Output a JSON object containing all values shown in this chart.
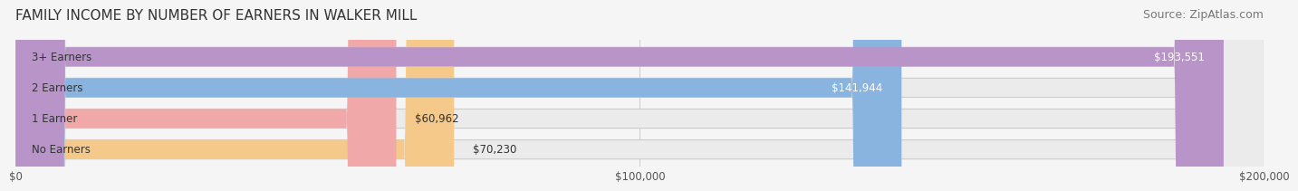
{
  "title": "FAMILY INCOME BY NUMBER OF EARNERS IN WALKER MILL",
  "source": "Source: ZipAtlas.com",
  "categories": [
    "No Earners",
    "1 Earner",
    "2 Earners",
    "3+ Earners"
  ],
  "values": [
    70230,
    60962,
    141944,
    193551
  ],
  "max_value": 200000,
  "bar_colors": [
    "#f5c98a",
    "#f0a8a8",
    "#8ab4e0",
    "#b894c8"
  ],
  "bar_bg_color": "#e8e8e8",
  "label_colors": [
    "#555555",
    "#555555",
    "#ffffff",
    "#ffffff"
  ],
  "title_fontsize": 11,
  "source_fontsize": 9,
  "tick_labels": [
    "$0",
    "$100,000",
    "$200,000"
  ],
  "tick_values": [
    0,
    100000,
    200000
  ],
  "fig_bg_color": "#f5f5f5",
  "bar_bg_outer": "#d8d8d8"
}
